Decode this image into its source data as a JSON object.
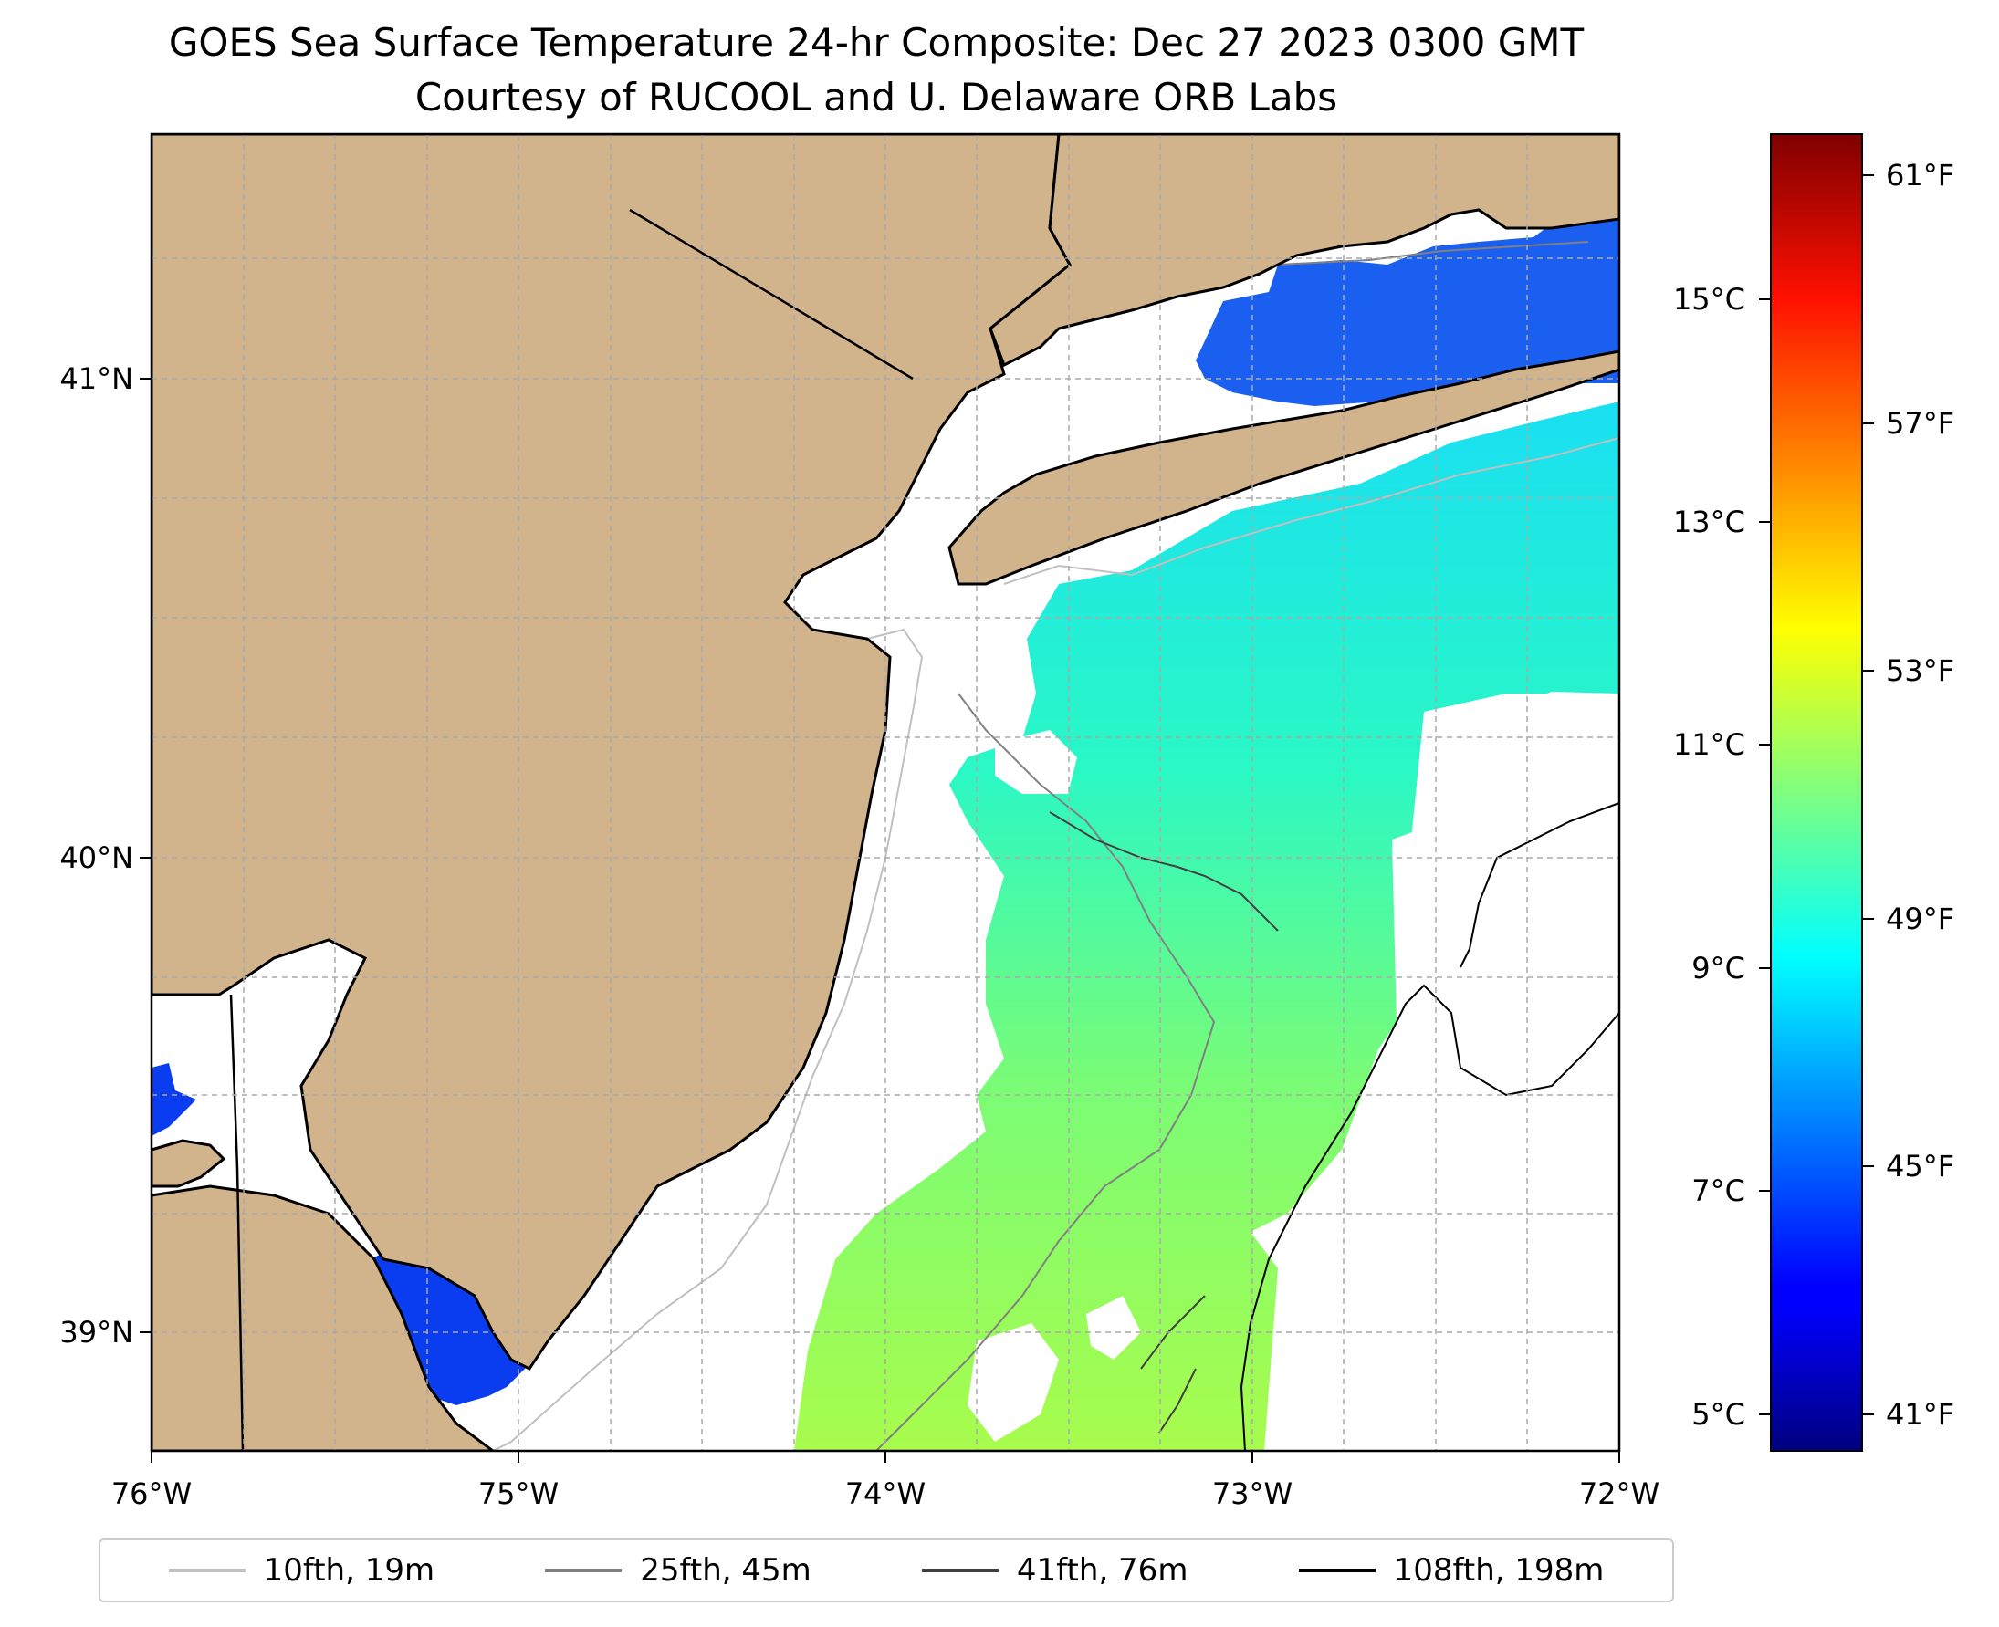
{
  "title": {
    "line1": "GOES Sea Surface Temperature 24-hr Composite: Dec 27 2023 0300 GMT",
    "line2": "Courtesy of RUCOOL and U. Delaware ORB Labs"
  },
  "map": {
    "lon_range": [
      -76,
      -72
    ],
    "lat_range": [
      38.7,
      41.5
    ],
    "lon_ticks": [
      "76°W",
      "75°W",
      "74°W",
      "73°W",
      "72°W"
    ],
    "lat_ticks": [
      "41°N",
      "40°N",
      "39°N"
    ],
    "land_color": "#d2b48c",
    "gridlines": true
  },
  "colorbar": {
    "cmap": "jet",
    "celsius_ticks": [
      "15°C",
      "13°C",
      "11°C",
      "9°C",
      "7°C",
      "5°C"
    ],
    "fahrenheit_ticks": [
      "61°F",
      "57°F",
      "53°F",
      "49°F",
      "45°F",
      "41°F"
    ]
  },
  "legend": {
    "items": [
      {
        "label": "10fth, 19m",
        "color": "#c0c0c0"
      },
      {
        "label": "25fth, 45m",
        "color": "#808080"
      },
      {
        "label": "41fth, 76m",
        "color": "#404040"
      },
      {
        "label": "108fth, 198m",
        "color": "#000000"
      }
    ]
  }
}
